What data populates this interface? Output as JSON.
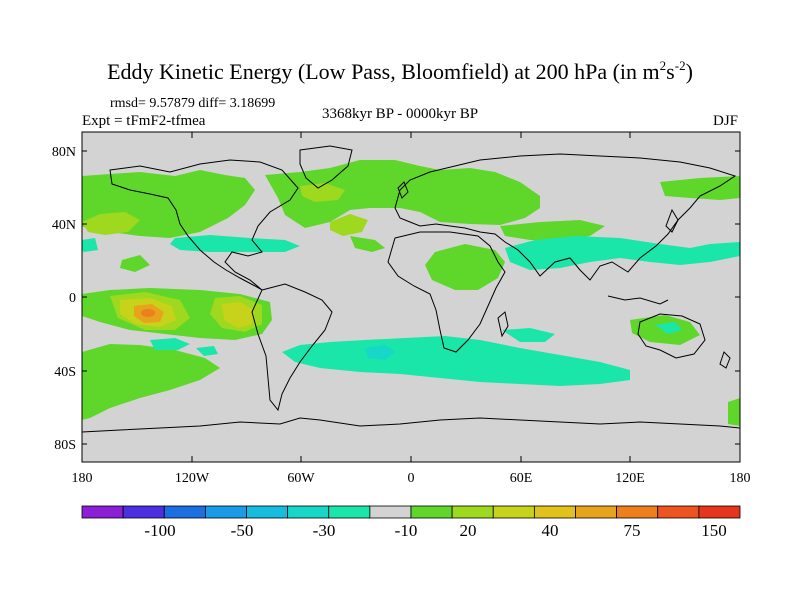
{
  "title": {
    "main": "Eddy Kinetic Energy (Low Pass, Bloomfield) at 200 hPa (in m",
    "sup1": "2",
    "mid": "s",
    "sup2": "-2",
    "end": ")"
  },
  "stats": "rmsd= 9.57879  diff= 3.18699",
  "experiment": "Expt = tFmF2-tfmea",
  "period": "3368kyr BP - 0000kyr BP",
  "season": "DJF",
  "map": {
    "projection": "cylindrical equidistant",
    "lon_range": [
      -180,
      180
    ],
    "lat_range": [
      -90,
      90
    ],
    "lat_labels": [
      "80N",
      "40N",
      "0",
      "40S",
      "80S"
    ],
    "lon_labels": [
      "180",
      "120W",
      "60W",
      "0",
      "60E",
      "120E",
      "180"
    ],
    "land_outline_color": "#000000",
    "background_color": "#d3d3d3"
  },
  "colorbar": {
    "colors": [
      "#8c1fd6",
      "#4b2fe0",
      "#1c6fe0",
      "#1a9be8",
      "#16bce0",
      "#17d7c8",
      "#19e6a8",
      "#d3d3d3",
      "#5fd62a",
      "#9ed81f",
      "#c7d31a",
      "#e0c21a",
      "#e8a31c",
      "#ec7f1e",
      "#ee5420",
      "#e6341d"
    ],
    "tick_labels": [
      "-100",
      "-50",
      "-30",
      "-10",
      "20",
      "40",
      "75",
      "150"
    ]
  },
  "fields": [
    {
      "name": "tropical-pacific-max",
      "color": "#e8a31c"
    },
    {
      "name": "positive-moderate",
      "color": "#c7d31a"
    },
    {
      "name": "positive-light",
      "color": "#9ed81f"
    },
    {
      "name": "positive-weak",
      "color": "#5fd62a"
    },
    {
      "name": "negative-weak",
      "color": "#19e6a8"
    },
    {
      "name": "negative-light",
      "color": "#17d7c8"
    }
  ]
}
